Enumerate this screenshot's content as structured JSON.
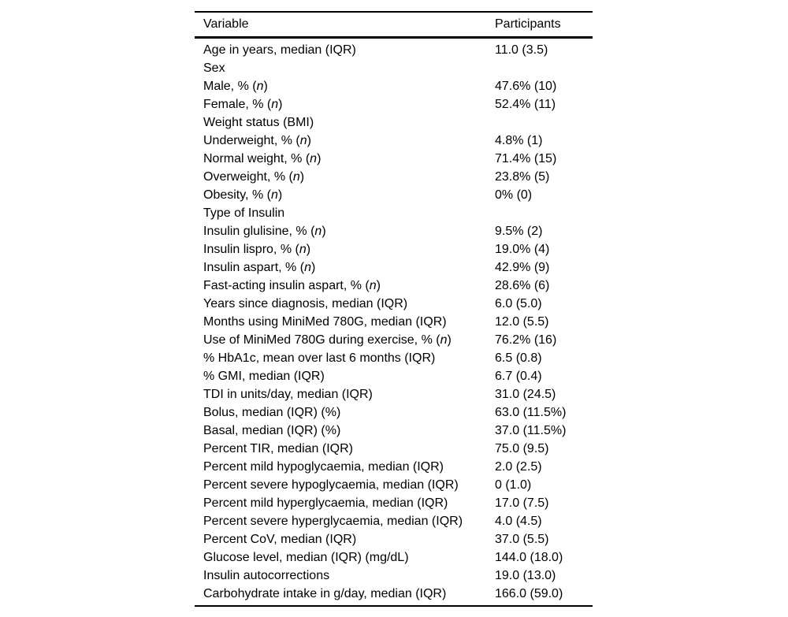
{
  "table": {
    "columns": [
      {
        "label": "Variable"
      },
      {
        "label": "Participants"
      }
    ],
    "rows": [
      {
        "label": "Age in years, median (IQR)",
        "value": "11.0 (3.5)",
        "italic_n": false
      },
      {
        "label": "Sex",
        "value": "",
        "italic_n": false
      },
      {
        "label": "Male, % (n)",
        "value": "47.6% (10)",
        "italic_n": true
      },
      {
        "label": "Female, % (n)",
        "value": "52.4% (11)",
        "italic_n": true
      },
      {
        "label": "Weight status (BMI)",
        "value": "",
        "italic_n": false
      },
      {
        "label": "Underweight, % (n)",
        "value": "4.8% (1)",
        "italic_n": true
      },
      {
        "label": "Normal weight, % (n)",
        "value": "71.4% (15)",
        "italic_n": true
      },
      {
        "label": "Overweight, % (n)",
        "value": "23.8% (5)",
        "italic_n": true
      },
      {
        "label": "Obesity, % (n)",
        "value": "0% (0)",
        "italic_n": true
      },
      {
        "label": "Type of Insulin",
        "value": "",
        "italic_n": false
      },
      {
        "label": "Insulin glulisine, % (n)",
        "value": "9.5% (2)",
        "italic_n": true
      },
      {
        "label": "Insulin lispro, % (n)",
        "value": "19.0% (4)",
        "italic_n": true
      },
      {
        "label": "Insulin aspart, % (n)",
        "value": "42.9% (9)",
        "italic_n": true
      },
      {
        "label": "Fast-acting insulin aspart, % (n)",
        "value": "28.6% (6)",
        "italic_n": true
      },
      {
        "label": "Years since diagnosis, median (IQR)",
        "value": "6.0 (5.0)",
        "italic_n": false
      },
      {
        "label": "Months using MiniMed 780G, median (IQR)",
        "value": "12.0 (5.5)",
        "italic_n": false
      },
      {
        "label": "Use of MiniMed 780G during exercise, % (n)",
        "value": "76.2% (16)",
        "italic_n": true
      },
      {
        "label": "% HbA1c, mean over last 6 months (IQR)",
        "value": "6.5 (0.8)",
        "italic_n": false
      },
      {
        "label": "% GMI, median (IQR)",
        "value": "6.7 (0.4)",
        "italic_n": false
      },
      {
        "label": "TDI in units/day, median (IQR)",
        "value": "31.0 (24.5)",
        "italic_n": false
      },
      {
        "label": "Bolus, median (IQR) (%)",
        "value": "63.0 (11.5%)",
        "italic_n": false
      },
      {
        "label": "Basal, median (IQR) (%)",
        "value": "37.0 (11.5%)",
        "italic_n": false
      },
      {
        "label": "Percent TIR, median (IQR)",
        "value": "75.0 (9.5)",
        "italic_n": false
      },
      {
        "label": "Percent mild hypoglycaemia, median (IQR)",
        "value": "2.0 (2.5)",
        "italic_n": false
      },
      {
        "label": "Percent severe hypoglycaemia, median (IQR)",
        "value": "0 (1.0)",
        "italic_n": false
      },
      {
        "label": "Percent mild hyperglycaemia, median (IQR)",
        "value": "17.0 (7.5)",
        "italic_n": false
      },
      {
        "label": "Percent severe hyperglycaemia, median (IQR)",
        "value": "4.0 (4.5)",
        "italic_n": false
      },
      {
        "label": "Percent CoV, median (IQR)",
        "value": "37.0 (5.5)",
        "italic_n": false
      },
      {
        "label": "Glucose level, median (IQR) (mg/dL)",
        "value": "144.0 (18.0)",
        "italic_n": false
      },
      {
        "label": "Insulin autocorrections",
        "value": "19.0 (13.0)",
        "italic_n": false
      },
      {
        "label": "Carbohydrate intake in g/day, median (IQR)",
        "value": "166.0 (59.0)",
        "italic_n": false
      }
    ]
  }
}
